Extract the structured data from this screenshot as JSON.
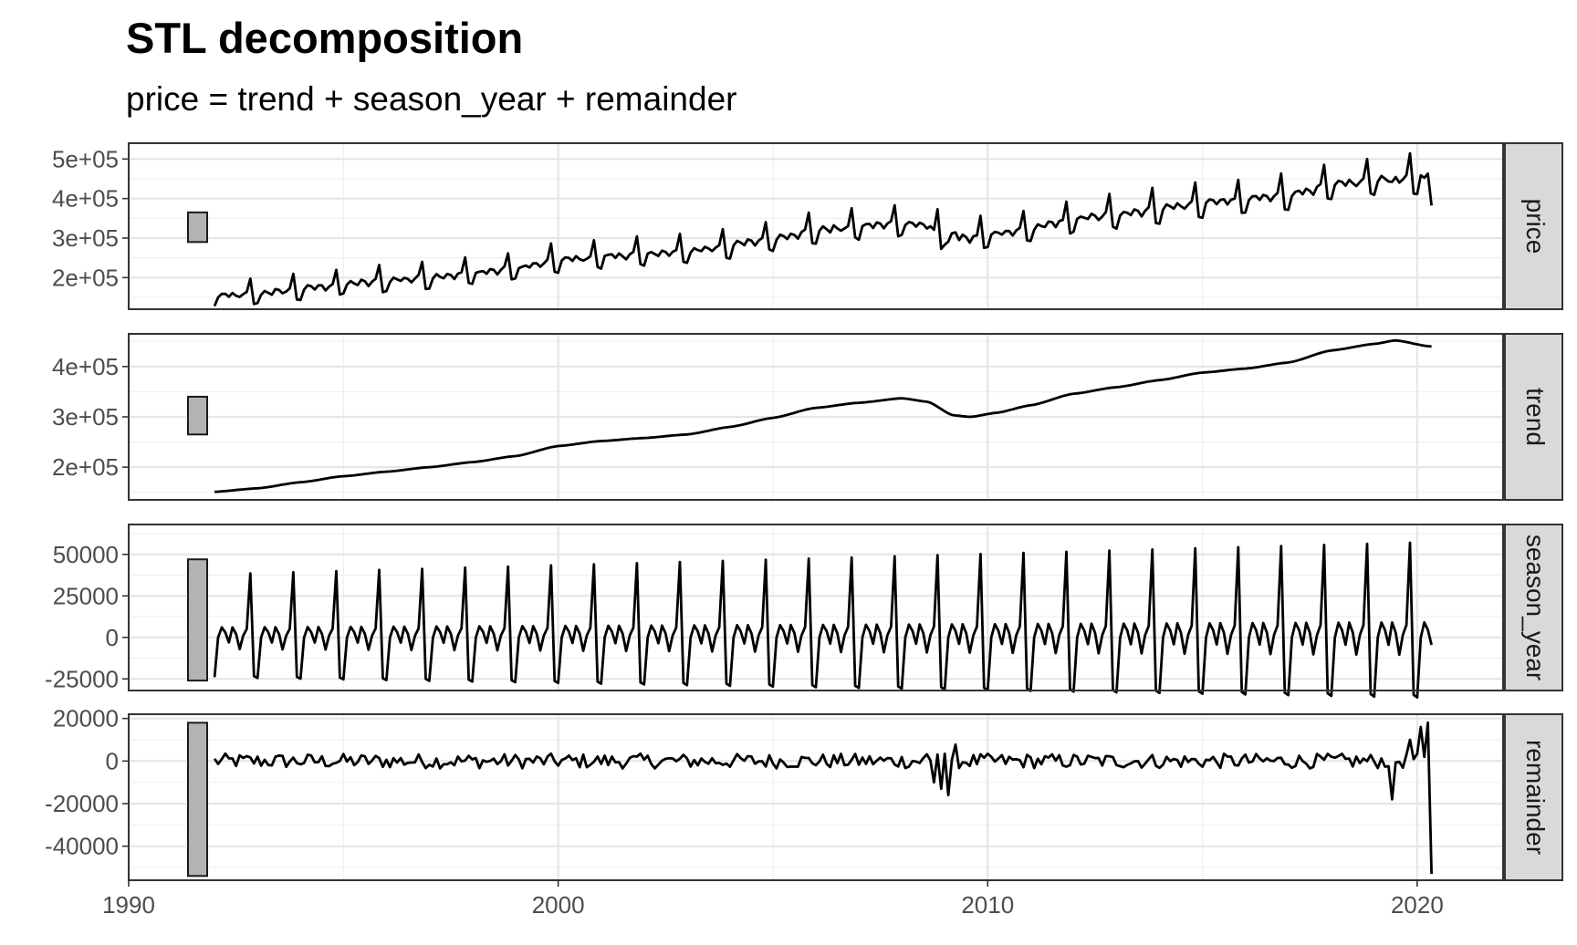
{
  "chart_data": {
    "type": "line",
    "title": "STL decomposition",
    "subtitle": "price = trend + season_year + remainder",
    "x_axis": {
      "range": [
        1990,
        2022
      ],
      "ticks": [
        1990,
        2000,
        2010,
        2020
      ]
    },
    "series_color": "#000000",
    "scale_bar_color": "#b3b3b3",
    "grid": true,
    "panels": [
      {
        "name": "price",
        "ylim": [
          120000,
          540000
        ],
        "y_ticks": [
          200000,
          300000,
          400000,
          500000
        ],
        "y_tick_labels": [
          "2e+05",
          "3e+05",
          "4e+05",
          "5e+05"
        ],
        "scale_bar": [
          290000,
          365000
        ]
      },
      {
        "name": "trend",
        "ylim": [
          135000,
          465000
        ],
        "y_ticks": [
          200000,
          300000,
          400000
        ],
        "y_tick_labels": [
          "2e+05",
          "3e+05",
          "4e+05"
        ],
        "scale_bar": [
          265000,
          340000
        ],
        "trend_knots": [
          [
            1992.0,
            151000
          ],
          [
            1993.0,
            158000
          ],
          [
            1994.0,
            170000
          ],
          [
            1995.0,
            182000
          ],
          [
            1996.0,
            191000
          ],
          [
            1997.0,
            200000
          ],
          [
            1998.0,
            210000
          ],
          [
            1999.0,
            222000
          ],
          [
            2000.0,
            242000
          ],
          [
            2001.0,
            252000
          ],
          [
            2002.0,
            258000
          ],
          [
            2003.0,
            265000
          ],
          [
            2004.0,
            280000
          ],
          [
            2005.0,
            298000
          ],
          [
            2006.0,
            318000
          ],
          [
            2007.0,
            328000
          ],
          [
            2008.0,
            337000
          ],
          [
            2008.6,
            330000
          ],
          [
            2009.2,
            303000
          ],
          [
            2009.6,
            300000
          ],
          [
            2010.2,
            308000
          ],
          [
            2011.0,
            323000
          ],
          [
            2012.0,
            346000
          ],
          [
            2013.0,
            359000
          ],
          [
            2014.0,
            373000
          ],
          [
            2015.0,
            388000
          ],
          [
            2016.0,
            396000
          ],
          [
            2017.0,
            408000
          ],
          [
            2018.0,
            432000
          ],
          [
            2019.0,
            445000
          ],
          [
            2019.5,
            452000
          ],
          [
            2020.3,
            440000
          ]
        ]
      },
      {
        "name": "season_year",
        "ylim": [
          -32000,
          68000
        ],
        "y_ticks": [
          -25000,
          0,
          25000,
          50000
        ],
        "y_tick_labels": [
          "-25000",
          "0",
          "25000",
          "50000"
        ],
        "scale_bar": [
          -26000,
          47000
        ],
        "seasonal_pattern": [
          -24000,
          0,
          6000,
          3000,
          -3000,
          6000,
          2000,
          -7000,
          1000,
          5000,
          38000,
          -23000
        ],
        "amplitude_growth_per_year": 0.018
      },
      {
        "name": "remainder",
        "ylim": [
          -56000,
          22000
        ],
        "y_ticks": [
          -40000,
          -20000,
          0,
          20000
        ],
        "y_tick_labels": [
          "-40000",
          "-20000",
          "0",
          "20000"
        ],
        "scale_bar": [
          -54000,
          18000
        ],
        "remainder_events": [
          [
            2008.75,
            -10000
          ],
          [
            2008.9,
            -13000
          ],
          [
            2009.1,
            -16000
          ],
          [
            2019.45,
            -18000
          ],
          [
            2019.8,
            10000
          ],
          [
            2020.05,
            16000
          ],
          [
            2020.25,
            18000
          ],
          [
            2020.33,
            -53000
          ]
        ]
      }
    ]
  }
}
